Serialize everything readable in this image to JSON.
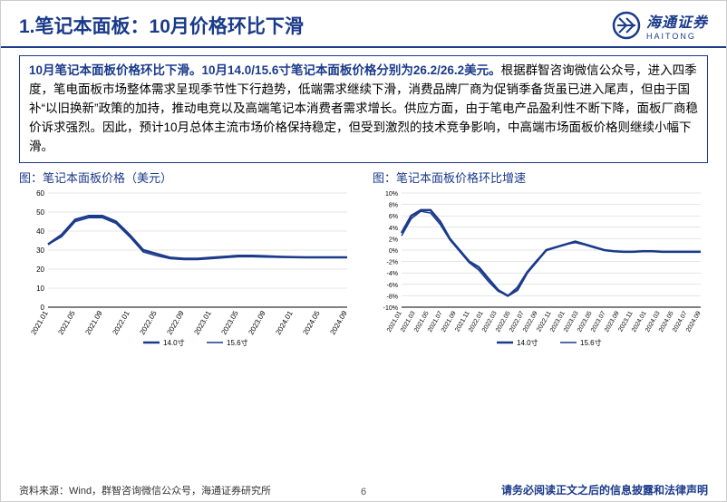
{
  "header": {
    "title": "1.笔记本面板：10月价格环比下滑",
    "logo_cn": "海通证券",
    "logo_en": "HAITONG"
  },
  "paragraph": {
    "lead": "10月笔记本面板价格环比下滑。10月14.0/15.6寸笔记本面板价格分别为26.2/26.2美元。",
    "body": "根据群智咨询微信公众号，进入四季度，笔电面板市场整体需求呈现季节性下行趋势，低端需求继续下滑，消费品牌厂商为促销季备货虽已进入尾声，但由于国补“以旧换新”政策的加持，推动电竞以及高端笔记本消费者需求增长。供应方面，由于笔电产品盈利性不断下降，面板厂商稳价诉求强烈。因此，预计10月总体主流市场价格保持稳定，但受到激烈的技术竞争影响，中高端市场面板价格则继续小幅下滑。"
  },
  "chart_left": {
    "title": "图：笔记本面板价格（美元）",
    "type": "line",
    "x_labels": [
      "2021.01",
      "2021.05",
      "2021.09",
      "2022.01",
      "2022.05",
      "2022.09",
      "2023.01",
      "2023.05",
      "2023.09",
      "2024.01",
      "2024.05",
      "2024.09"
    ],
    "ylim": [
      0,
      60
    ],
    "yticks": [
      0,
      10,
      20,
      30,
      40,
      50,
      60
    ],
    "grid_color": "#cccccc",
    "axis_color": "#000000",
    "background_color": "#ffffff",
    "line_width_a": 2.5,
    "line_width_b": 1.5,
    "color_a": "#1a3a8a",
    "color_b": "#1a3a8a",
    "legend_a": "14.0寸",
    "legend_b": "15.6寸",
    "series_a": [
      33,
      38,
      46,
      48,
      48,
      45,
      38,
      30,
      28,
      26,
      25.5,
      25.5,
      26,
      26.5,
      27,
      27,
      26.8,
      26.5,
      26.3,
      26.2,
      26.2,
      26.2,
      26.2
    ],
    "series_b": [
      33,
      37,
      45,
      47,
      47,
      44,
      37,
      29,
      27,
      25.5,
      25,
      25,
      25.5,
      26,
      26.5,
      26.5,
      26.3,
      26.2,
      26.2,
      26.2,
      26.2,
      26.2,
      26.2
    ],
    "tick_fontsize": 8,
    "label_fontsize": 8
  },
  "chart_right": {
    "title": "图：笔记本面板价格环比增速",
    "type": "line",
    "x_labels": [
      "2021.01",
      "2021.03",
      "2021.05",
      "2021.07",
      "2021.09",
      "2021.11",
      "2022.01",
      "2022.03",
      "2022.05",
      "2022.07",
      "2022.09",
      "2022.11",
      "2023.01",
      "2023.03",
      "2023.05",
      "2023.07",
      "2023.09",
      "2023.11",
      "2024.01",
      "2024.03",
      "2024.05",
      "2024.07",
      "2024.09"
    ],
    "ylim": [
      -10,
      10
    ],
    "yticks": [
      -10,
      -8,
      -6,
      -4,
      -2,
      0,
      2,
      4,
      6,
      8,
      10
    ],
    "grid_color": "#cccccc",
    "axis_color": "#000000",
    "background_color": "#ffffff",
    "line_width_a": 2.5,
    "line_width_b": 1.5,
    "color_a": "#1a3a8a",
    "color_b": "#1a3a8a",
    "legend_a": "14.0寸",
    "legend_b": "15.6寸",
    "series_a": [
      3,
      6,
      7,
      7,
      5,
      2,
      0,
      -2,
      -3,
      -5,
      -7,
      -8,
      -7,
      -4,
      -2,
      0,
      0.5,
      1,
      1.5,
      1,
      0.5,
      0,
      -0.2,
      -0.3,
      -0.3,
      -0.2,
      -0.2,
      -0.3,
      -0.3,
      -0.3,
      -0.3,
      -0.3
    ],
    "series_b": [
      2.5,
      5.5,
      6.8,
      6.5,
      4.5,
      1.8,
      -0.2,
      -2.2,
      -3.5,
      -5.5,
      -7.2,
      -8,
      -6.5,
      -3.8,
      -1.8,
      0,
      0.5,
      1,
      1.3,
      0.9,
      0.4,
      0,
      -0.2,
      -0.3,
      -0.3,
      -0.2,
      -0.2,
      -0.3,
      -0.3,
      -0.3,
      -0.3,
      -0.3
    ],
    "tick_fontsize": 7,
    "label_fontsize": 8,
    "y_suffix": "%"
  },
  "footer": {
    "source": "资料来源：Wind，群智咨询微信公众号，海通证券研究所",
    "page": "6",
    "disclaimer": "请务必阅读正文之后的信息披露和法律声明"
  },
  "colors": {
    "brand": "#1a3a8a"
  }
}
